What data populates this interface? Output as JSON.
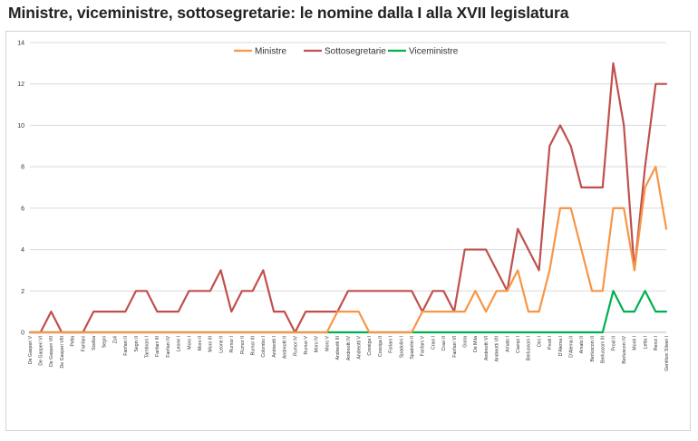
{
  "title": "Ministre, viceministre, sottosegretarie: le nomine dalla I alla XVII legislatura",
  "chart_data": {
    "type": "line",
    "title": "Ministre, viceministre, sottosegretarie: le nomine dalla I alla XVII legislatura",
    "xlabel": "",
    "ylabel": "",
    "ylim": [
      0,
      14
    ],
    "yticks": [
      0,
      2,
      4,
      6,
      8,
      10,
      12,
      14
    ],
    "grid": true,
    "legend_position": "top-center",
    "categories": [
      "De Gasperi V",
      "De Gasperi VI",
      "De Gasperi VII",
      "De Gasperi VIII",
      "Pella",
      "Fanfani",
      "Scelba",
      "Segni",
      "Zoli",
      "Fanfani II",
      "Segni II",
      "Tambroni I",
      "Fanfani III",
      "Fanfani IV",
      "Leone I",
      "Moro I",
      "Moro II",
      "Moro III",
      "Leone II",
      "Rumor I",
      "Rumor II",
      "Rumor III",
      "Colombo I",
      "Andreotti I",
      "Andreotti II",
      "Rumor IV",
      "Rumor V",
      "Moro IV",
      "Moro V",
      "Andreotti III",
      "Andreotti IV",
      "Andreotti V",
      "Cossiga I",
      "Cossiga II",
      "Forlani I",
      "Spadolini I",
      "Spadolini II",
      "Fanfani V",
      "Craxi I",
      "Craxi II",
      "Fanfani VI",
      "Goria",
      "De Mita",
      "Andreotti VI",
      "Andreotti VII",
      "Amato I",
      "Ciampi I",
      "Berlusconi I",
      "Dini I",
      "Prodi I",
      "D'Alema I",
      "D'Alema II",
      "Amato II",
      "Berlusconi II",
      "Berlusconi III",
      "Prodi II",
      "Berlusconi IV",
      "Monti I",
      "Letta I",
      "Renzi I",
      "Gentiloni Silveri I"
    ],
    "series": [
      {
        "name": "Ministre",
        "color": "#f79646",
        "values": [
          0,
          0,
          0,
          0,
          0,
          0,
          0,
          0,
          0,
          0,
          0,
          0,
          0,
          0,
          0,
          0,
          0,
          0,
          0,
          0,
          0,
          0,
          0,
          0,
          0,
          0,
          0,
          0,
          0,
          1,
          1,
          1,
          0,
          0,
          0,
          0,
          0,
          1,
          1,
          1,
          1,
          1,
          2,
          1,
          2,
          2,
          3,
          1,
          1,
          3,
          6,
          6,
          4,
          2,
          2,
          6,
          6,
          3,
          7,
          8,
          5
        ]
      },
      {
        "name": "Sottosegretarie",
        "color": "#c0504d",
        "values": [
          0,
          0,
          1,
          0,
          0,
          0,
          1,
          1,
          1,
          1,
          2,
          2,
          1,
          1,
          1,
          2,
          2,
          2,
          3,
          1,
          2,
          2,
          3,
          1,
          1,
          0,
          1,
          1,
          1,
          1,
          2,
          2,
          2,
          2,
          2,
          2,
          2,
          1,
          2,
          2,
          1,
          4,
          4,
          4,
          3,
          2,
          5,
          4,
          3,
          9,
          10,
          9,
          7,
          7,
          7,
          13,
          10,
          3,
          8,
          12,
          12
        ]
      },
      {
        "name": "Viceministre",
        "color": "#00b050",
        "values": [
          0,
          0,
          0,
          0,
          0,
          0,
          0,
          0,
          0,
          0,
          0,
          0,
          0,
          0,
          0,
          0,
          0,
          0,
          0,
          0,
          0,
          0,
          0,
          0,
          0,
          0,
          0,
          0,
          0,
          0,
          0,
          0,
          0,
          0,
          0,
          0,
          0,
          0,
          0,
          0,
          0,
          0,
          0,
          0,
          0,
          0,
          0,
          0,
          0,
          0,
          0,
          0,
          0,
          0,
          0,
          2,
          1,
          1,
          2,
          1,
          1
        ]
      }
    ]
  }
}
